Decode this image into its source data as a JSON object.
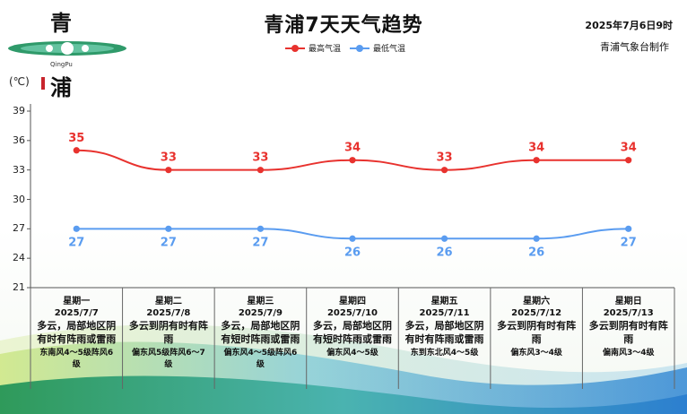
{
  "header": {
    "title": "青浦7天天气趋势",
    "date": "2025年7月6日9时",
    "source": "青浦气象台制作"
  },
  "logo": {
    "char_top": "青",
    "char_bottom": "浦",
    "pinyin": "QingPu"
  },
  "colors": {
    "high": "#e8322e",
    "low": "#5a9cf0"
  },
  "chart_data": {
    "type": "line",
    "ylabel": "(℃)",
    "ylim": [
      21,
      39
    ],
    "yticks": [
      "39",
      "36",
      "33",
      "30",
      "27",
      "24",
      "21"
    ],
    "legend": {
      "placement": "top-center",
      "high_label": "最高气温",
      "low_label": "最低气温"
    },
    "series": [
      {
        "name": "最高气温",
        "values": [
          35,
          33,
          33,
          34,
          33,
          34,
          34
        ],
        "labels": [
          "35",
          "33",
          "33",
          "34",
          "33",
          "34",
          "34"
        ]
      },
      {
        "name": "最低气温",
        "values": [
          27,
          27,
          27,
          26,
          26,
          26,
          27
        ],
        "labels": [
          "27",
          "27",
          "27",
          "26",
          "26",
          "26",
          "27"
        ]
      }
    ]
  },
  "days": [
    {
      "weekday": "星期一",
      "date": "2025/7/7",
      "weather": "多云，局部地区阴有时有阵雨或雷雨",
      "wind": "东南风4～5级阵风6级"
    },
    {
      "weekday": "星期二",
      "date": "2025/7/8",
      "weather": "多云到阴有时有阵雨",
      "wind": "偏东风5级阵风6～7级"
    },
    {
      "weekday": "星期三",
      "date": "2025/7/9",
      "weather": "多云，局部地区阴有短时阵雨或雷雨",
      "wind": "偏东风4～5级阵风6级"
    },
    {
      "weekday": "星期四",
      "date": "2025/7/10",
      "weather": "多云，局部地区阴有短时阵雨或雷雨",
      "wind": "偏东风4～5级"
    },
    {
      "weekday": "星期五",
      "date": "2025/7/11",
      "weather": "多云，局部地区阴有时有阵雨或雷雨",
      "wind": "东到东北风4～5级"
    },
    {
      "weekday": "星期六",
      "date": "2025/7/12",
      "weather": "多云到阴有时有阵雨",
      "wind": "偏东风3～4级"
    },
    {
      "weekday": "星期日",
      "date": "2025/7/13",
      "weather": "多云到阴有时有阵雨",
      "wind": "偏南风3～4级"
    }
  ]
}
